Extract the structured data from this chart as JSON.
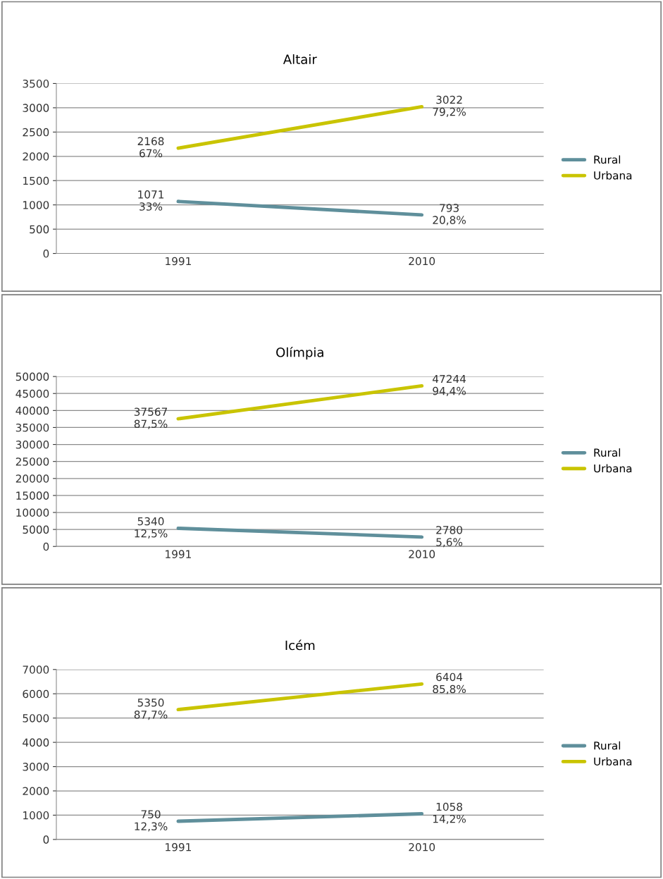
{
  "chart_data": [
    {
      "type": "line",
      "title": "Altair",
      "categories": [
        "1991",
        "2010"
      ],
      "ylim": [
        0,
        3500
      ],
      "yticks": [
        0,
        500,
        1000,
        1500,
        2000,
        2500,
        3000,
        3500
      ],
      "grid": "y",
      "legend": "right",
      "marker": "none",
      "series": [
        {
          "name": "Rural",
          "color": "#5f8f9b",
          "values": [
            1071,
            793
          ],
          "value_labels": [
            "1071\n33%",
            "793\n20,8%"
          ]
        },
        {
          "name": "Urbana",
          "color": "#c9c400",
          "values": [
            2168,
            3022
          ],
          "value_labels": [
            "2168\n67%",
            "3022\n79,2%"
          ]
        }
      ]
    },
    {
      "type": "line",
      "title": "Olímpia",
      "categories": [
        "1991",
        "2010"
      ],
      "ylim": [
        0,
        50000
      ],
      "yticks": [
        0,
        5000,
        10000,
        15000,
        20000,
        25000,
        30000,
        35000,
        40000,
        45000,
        50000
      ],
      "grid": "y",
      "legend": "right",
      "marker": "none",
      "series": [
        {
          "name": "Rural",
          "color": "#5f8f9b",
          "values": [
            5340,
            2780
          ],
          "value_labels": [
            "5340\n12,5%",
            "2780\n5,6%"
          ]
        },
        {
          "name": "Urbana",
          "color": "#c9c400",
          "values": [
            37567,
            47244
          ],
          "value_labels": [
            "37567\n87,5%",
            "47244\n94,4%"
          ]
        }
      ]
    },
    {
      "type": "line",
      "title": "Icém",
      "categories": [
        "1991",
        "2010"
      ],
      "ylim": [
        0,
        7000
      ],
      "yticks": [
        0,
        1000,
        2000,
        3000,
        4000,
        5000,
        6000,
        7000
      ],
      "grid": "y",
      "legend": "right",
      "marker": "none",
      "series": [
        {
          "name": "Rural",
          "color": "#5f8f9b",
          "values": [
            750,
            1058
          ],
          "value_labels": [
            "750\n12,3%",
            "1058\n14,2%"
          ]
        },
        {
          "name": "Urbana",
          "color": "#c9c400",
          "values": [
            5350,
            6404
          ],
          "value_labels": [
            "5350\n87,7%",
            "6404\n85,8%"
          ]
        }
      ]
    }
  ]
}
